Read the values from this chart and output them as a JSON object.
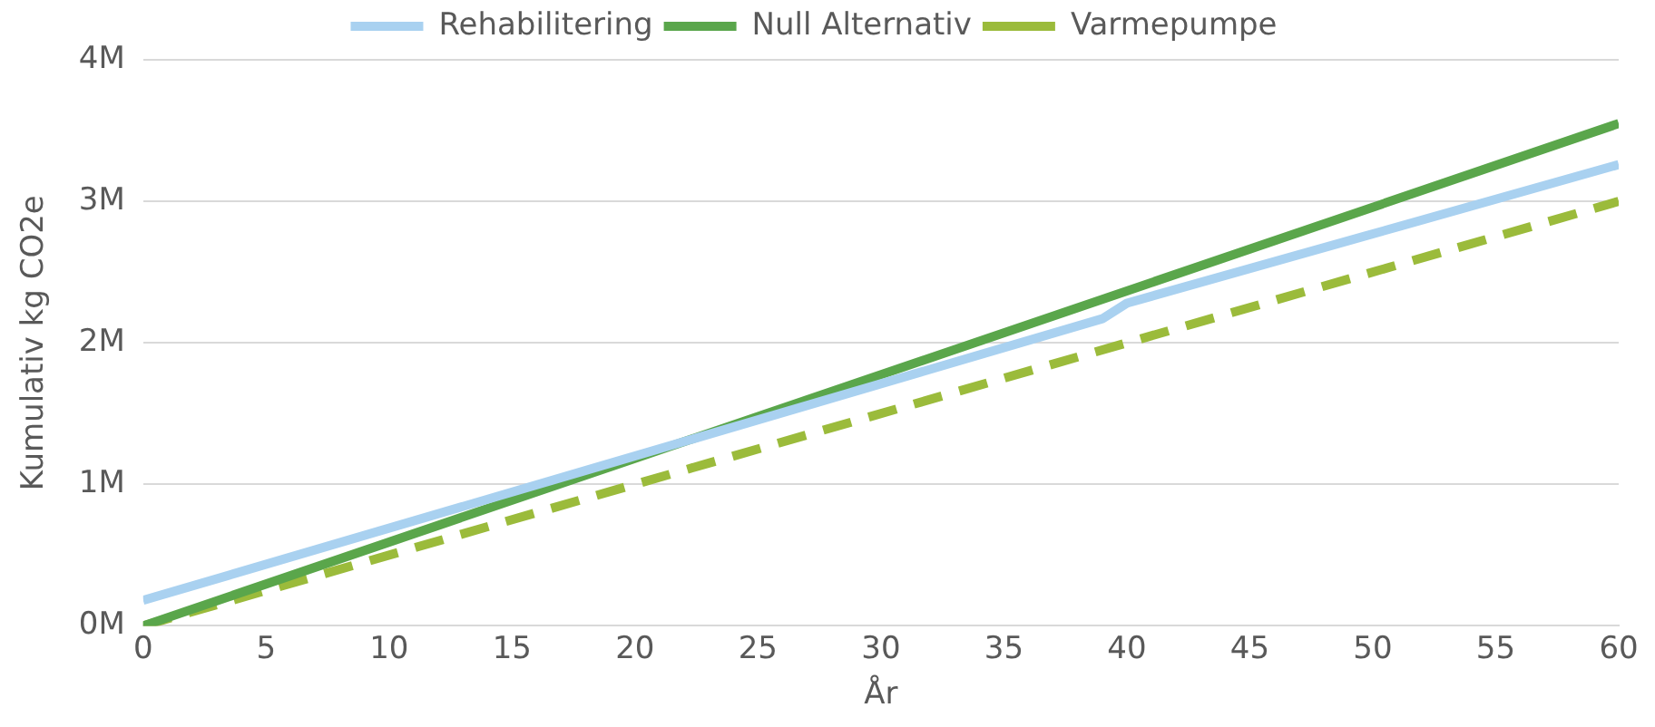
{
  "chart_data": {
    "type": "line",
    "xlabel": "År",
    "ylabel": "Kumulativ kg CO2e",
    "xlim": [
      0,
      60
    ],
    "xticks": [
      0,
      5,
      10,
      15,
      20,
      25,
      30,
      35,
      40,
      45,
      50,
      55,
      60
    ],
    "ylim": [
      0,
      4000000
    ],
    "yticks": [
      {
        "value": 0,
        "label": "0M"
      },
      {
        "value": 1000000,
        "label": "1M"
      },
      {
        "value": 2000000,
        "label": "2M"
      },
      {
        "value": 3000000,
        "label": "3M"
      },
      {
        "value": 4000000,
        "label": "4M"
      }
    ],
    "grid": "y",
    "legend": "top",
    "marker": "none",
    "series": [
      {
        "name": "Rehabilitering",
        "color": "#a9d1f0",
        "line_style": "solid",
        "x": [
          0,
          39,
          40,
          60
        ],
        "values": [
          180000,
          2170000,
          2280000,
          3260000
        ]
      },
      {
        "name": "Null Alternativ",
        "color": "#5aa64b",
        "line_style": "solid",
        "x": [
          0,
          60
        ],
        "values": [
          0,
          3550000
        ]
      },
      {
        "name": "Varmepumpe",
        "color": "#9bbb3b",
        "line_style": "dashed",
        "x": [
          0,
          60
        ],
        "values": [
          0,
          3000000
        ]
      }
    ]
  }
}
